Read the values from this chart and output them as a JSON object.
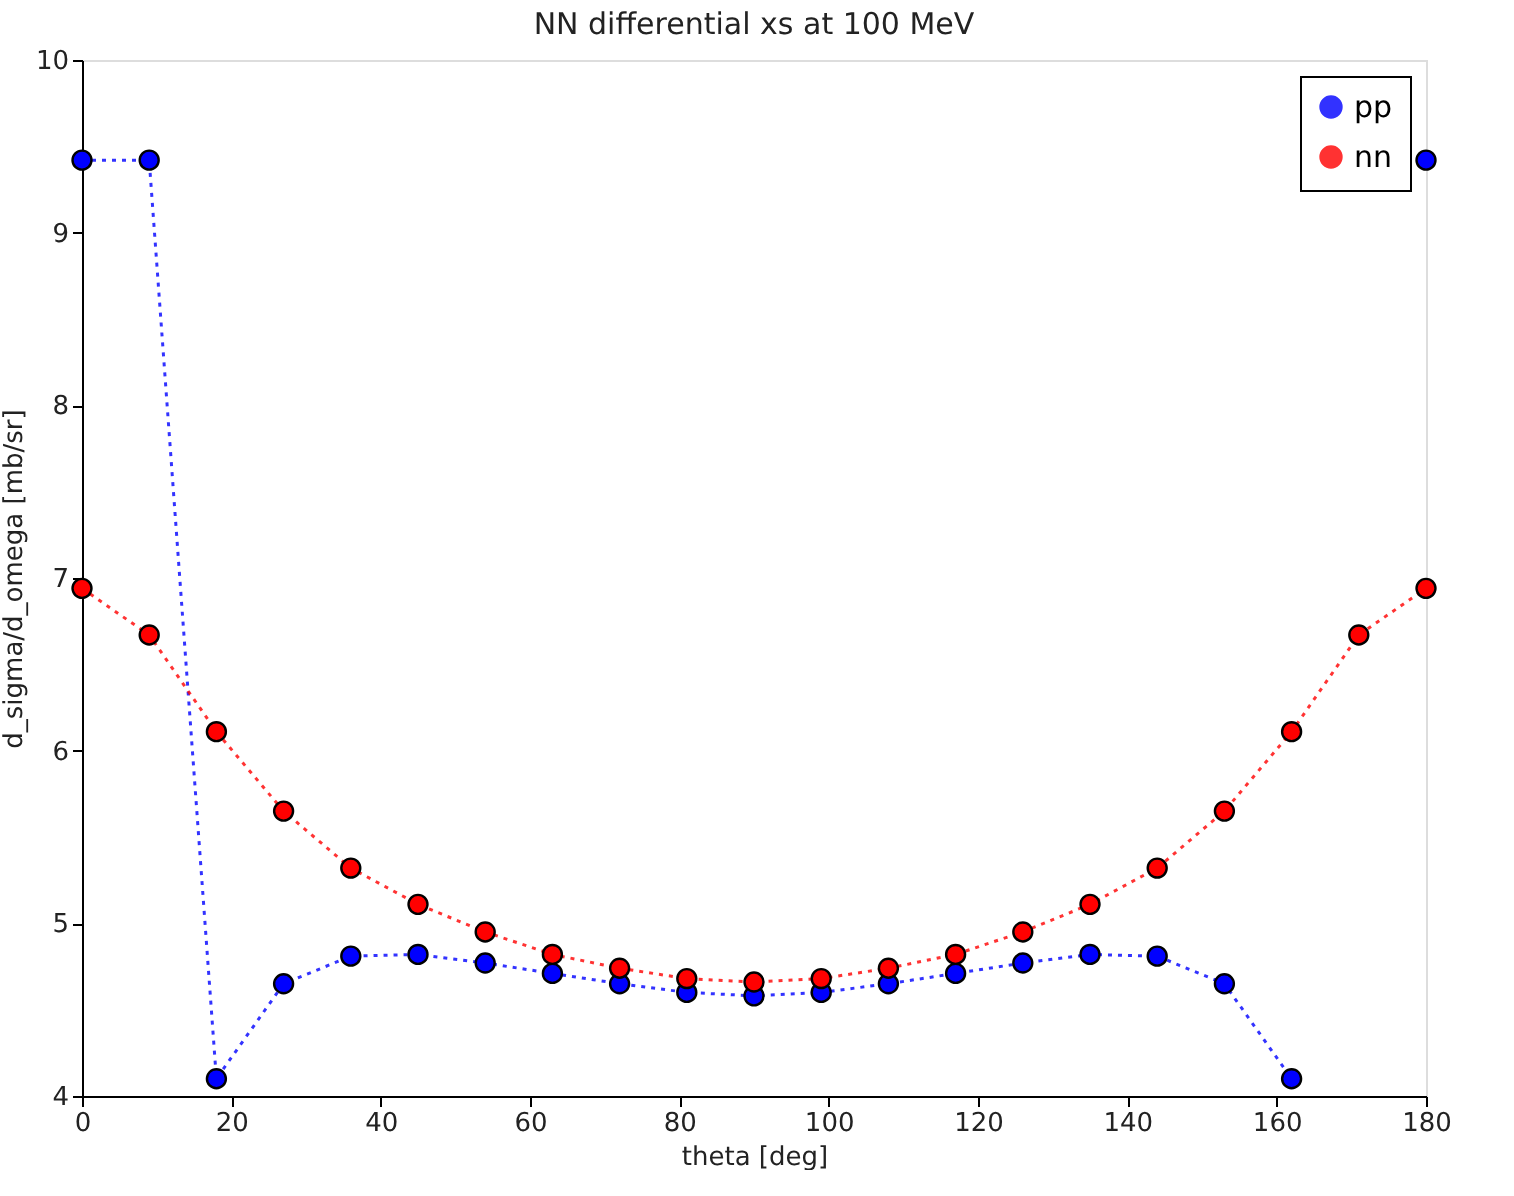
{
  "chart_data": {
    "type": "line",
    "title": "NN differential xs at 100 MeV",
    "xlabel": "theta [deg]",
    "ylabel": "d_sigma/d_omega [mb/sr]",
    "x": [
      0,
      9,
      18,
      27,
      36,
      45,
      54,
      63,
      72,
      81,
      90,
      99,
      108,
      117,
      126,
      135,
      144,
      153,
      162,
      171,
      180
    ],
    "series": [
      {
        "name": "pp",
        "color": "#0000ff",
        "values": [
          9.42,
          9.42,
          4.1,
          4.65,
          4.81,
          4.82,
          4.77,
          4.71,
          4.65,
          4.6,
          4.58,
          4.6,
          4.65,
          4.71,
          4.77,
          4.82,
          4.81,
          4.65,
          4.1,
          null,
          9.42
        ]
      },
      {
        "name": "nn",
        "color": "#ff0000",
        "values": [
          6.94,
          6.67,
          6.11,
          5.65,
          5.32,
          5.11,
          4.95,
          4.82,
          4.74,
          4.68,
          4.66,
          4.68,
          4.74,
          4.82,
          4.95,
          5.11,
          5.32,
          5.65,
          6.11,
          6.67,
          6.94
        ]
      }
    ],
    "xlim": [
      0,
      180
    ],
    "xticks": [
      0,
      20,
      40,
      60,
      80,
      100,
      120,
      140,
      160,
      180
    ],
    "ylim": [
      4,
      10
    ],
    "yticks": [
      4,
      5,
      6,
      7,
      8,
      9,
      10
    ],
    "marker": "circle",
    "line_style": "dotted",
    "legend": "top right",
    "grid": false
  }
}
